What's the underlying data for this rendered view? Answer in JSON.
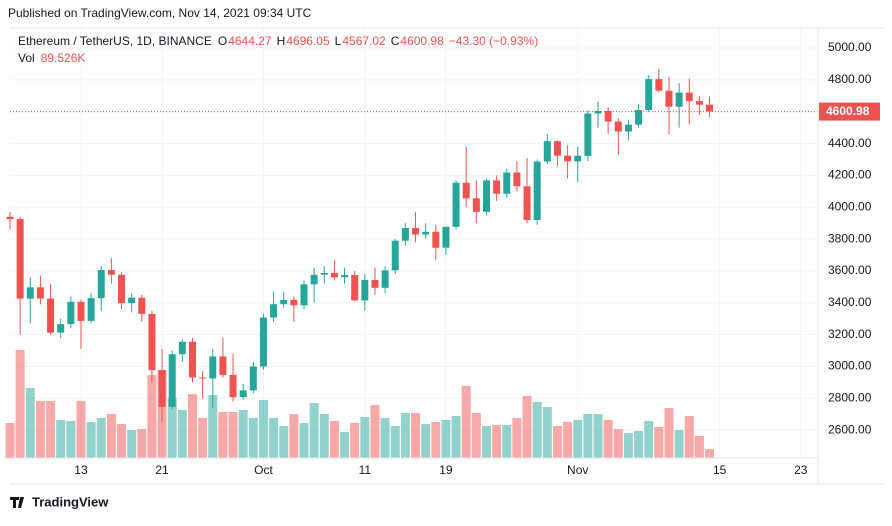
{
  "header": {
    "published": "Published on TradingView.com, Nov 14, 2021 09:34 UTC",
    "footer": "TradingView"
  },
  "chart_data": {
    "type": "candlestick",
    "title": "Ethereum / TetherUS, 1D, BINANCE",
    "ohlc_labels": [
      "O",
      "H",
      "L",
      "C"
    ],
    "change": "−43.30 (−0.93%)",
    "volume_label": "Vol",
    "volume_value_label": "89.526K",
    "up_color": "#26a69a",
    "down_color": "#ef5350",
    "xlim": [
      0,
      79.7
    ],
    "xticks": [
      {
        "value": 7,
        "label": "13"
      },
      {
        "value": 15,
        "label": "21"
      },
      {
        "value": 25,
        "label": "Oct"
      },
      {
        "value": 35,
        "label": "11"
      },
      {
        "value": 43,
        "label": "19"
      },
      {
        "value": 56,
        "label": "Nov"
      },
      {
        "value": 70,
        "label": "15"
      },
      {
        "value": 78,
        "label": "23"
      }
    ],
    "ylim": [
      2425,
      5126
    ],
    "yticks": [
      {
        "value": 2600,
        "label": "2600.00"
      },
      {
        "value": 2800,
        "label": "2800.00"
      },
      {
        "value": 3000,
        "label": "3000.00"
      },
      {
        "value": 3200,
        "label": "3200.00"
      },
      {
        "value": 3400,
        "label": "3400.00"
      },
      {
        "value": 3600,
        "label": "3600.00"
      },
      {
        "value": 3800,
        "label": "3800.00"
      },
      {
        "value": 4000,
        "label": "4000.00"
      },
      {
        "value": 4200,
        "label": "4200.00"
      },
      {
        "value": 4400,
        "label": "4400.00"
      },
      {
        "value": 4600,
        "label": "4600.00"
      },
      {
        "value": 4800,
        "label": "4800.00"
      },
      {
        "value": 5000,
        "label": "5000.00"
      }
    ],
    "grid": true,
    "open": [
      3940,
      3926,
      3426,
      3497,
      3427,
      3212,
      3266,
      3406,
      3286,
      3429,
      3606,
      3576,
      3398,
      3432,
      3330,
      2977,
      2746,
      3077,
      3155,
      2931,
      2925,
      3063,
      2947,
      2807,
      2850,
      3000,
      3307,
      3391,
      3418,
      3384,
      3516,
      3576,
      3587,
      3560,
      3574,
      3415,
      3543,
      3494,
      3604,
      3790,
      3870,
      3829,
      3846,
      3746,
      3877,
      4154,
      4056,
      3971,
      4169,
      4085,
      4218,
      4132,
      3920,
      4287,
      4415,
      4324,
      4288,
      4323,
      4589,
      4605,
      4538,
      4476,
      4519,
      4611,
      4805,
      4732,
      4632,
      4720,
      4667,
      4644.27
    ],
    "high": [
      3970,
      3940,
      3560,
      3570,
      3520,
      3300,
      3440,
      3420,
      3460,
      3630,
      3680,
      3590,
      3460,
      3450,
      3350,
      3110,
      3100,
      3170,
      3180,
      2970,
      3110,
      3180,
      3080,
      2890,
      3030,
      3330,
      3470,
      3470,
      3440,
      3540,
      3620,
      3630,
      3670,
      3620,
      3600,
      3580,
      3620,
      3630,
      3800,
      3900,
      3970,
      3900,
      3890,
      3880,
      4170,
      4380,
      4170,
      4180,
      4200,
      4240,
      4290,
      4310,
      4300,
      4460,
      4420,
      4390,
      4380,
      4610,
      4665,
      4630,
      4560,
      4550,
      4650,
      4830,
      4870,
      4820,
      4780,
      4810,
      4700,
      4696.05
    ],
    "low": [
      3860,
      3200,
      3270,
      3390,
      3200,
      3180,
      3240,
      3110,
      3270,
      3350,
      3520,
      3360,
      3340,
      3280,
      2900,
      2650,
      2730,
      3030,
      2900,
      2800,
      2740,
      2930,
      2780,
      2790,
      2830,
      2980,
      3280,
      3370,
      3280,
      3360,
      3400,
      3520,
      3540,
      3520,
      3410,
      3350,
      3450,
      3460,
      3580,
      3760,
      3780,
      3800,
      3670,
      3700,
      3860,
      4000,
      3900,
      3950,
      4040,
      4060,
      4100,
      3900,
      3890,
      4270,
      4260,
      4180,
      4160,
      4290,
      4500,
      4460,
      4330,
      4420,
      4500,
      4600,
      4720,
      4460,
      4500,
      4520,
      4580,
      4567.02
    ],
    "close": [
      3926,
      3426,
      3497,
      3427,
      3212,
      3266,
      3406,
      3286,
      3429,
      3606,
      3576,
      3398,
      3432,
      3330,
      2977,
      2746,
      3077,
      3155,
      2931,
      2925,
      3063,
      2947,
      2807,
      2850,
      3000,
      3307,
      3391,
      3418,
      3384,
      3516,
      3576,
      3587,
      3560,
      3574,
      3415,
      3543,
      3494,
      3604,
      3790,
      3870,
      3829,
      3846,
      3746,
      3877,
      4154,
      4056,
      3971,
      4169,
      4085,
      4218,
      4132,
      3920,
      4287,
      4415,
      4324,
      4288,
      4323,
      4589,
      4605,
      4538,
      4476,
      4519,
      4611,
      4805,
      4732,
      4632,
      4720,
      4667,
      4644.27,
      4600.98
    ],
    "volume": [
      350,
      1080,
      700,
      570,
      570,
      380,
      370,
      570,
      360,
      400,
      440,
      340,
      280,
      290,
      830,
      880,
      600,
      480,
      640,
      400,
      630,
      460,
      460,
      480,
      400,
      580,
      400,
      320,
      440,
      350,
      550,
      440,
      370,
      260,
      350,
      410,
      530,
      400,
      320,
      450,
      450,
      340,
      360,
      380,
      420,
      720,
      450,
      320,
      330,
      330,
      400,
      620,
      560,
      510,
      320,
      360,
      380,
      440,
      440,
      380,
      290,
      250,
      270,
      370,
      310,
      500,
      280,
      420,
      220,
      89.526
    ]
  }
}
